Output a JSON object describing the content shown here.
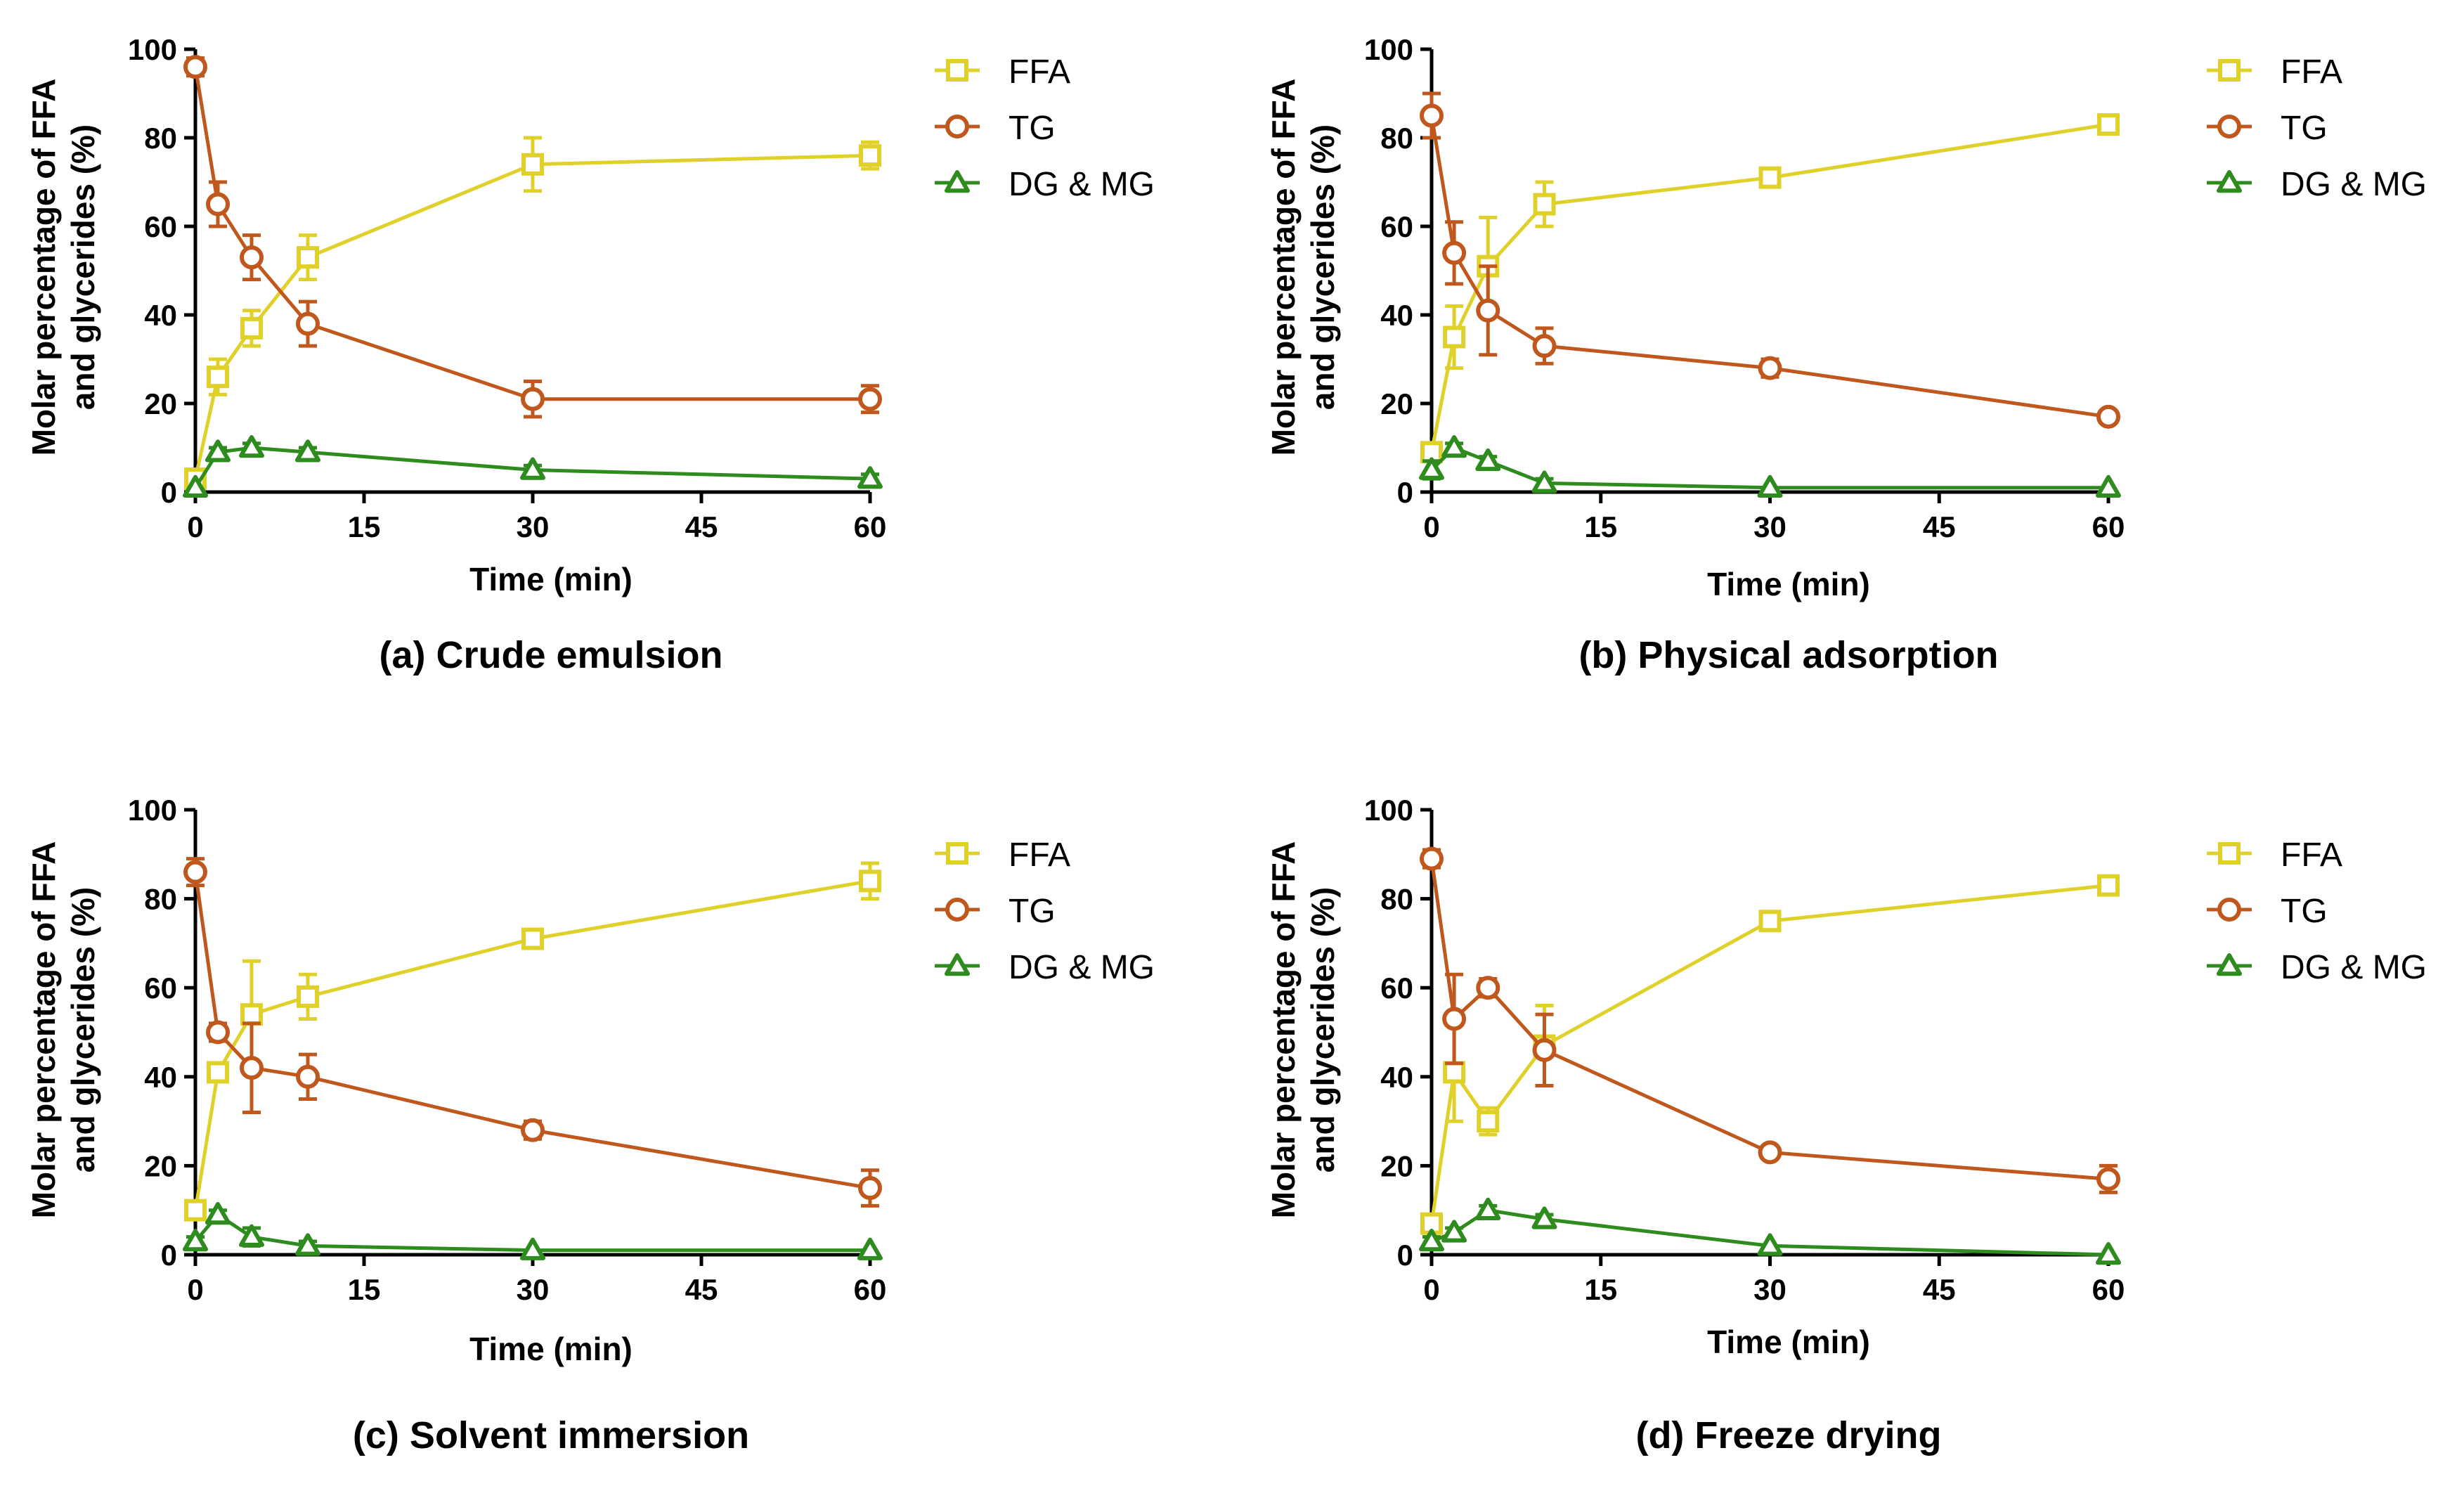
{
  "colors": {
    "FFA": "#e0d12a",
    "TG": "#c0581e",
    "DG & MG": "#2e8b1d"
  },
  "chart_data": [
    {
      "type": "line",
      "caption": "(a) Crude emulsion",
      "xlabel": "Time (min)",
      "ylabel_line1": "Molar percentage of FFA",
      "ylabel_line2": "and glycerides (%)",
      "xlim": [
        0,
        60
      ],
      "ylim": [
        0,
        100
      ],
      "xticks": [
        "0",
        "15",
        "30",
        "45",
        "60"
      ],
      "yticks": [
        "0",
        "20",
        "40",
        "60",
        "80",
        "100"
      ],
      "x": [
        0,
        2,
        5,
        10,
        30,
        60
      ],
      "series": [
        {
          "name": "FFA",
          "marker": "square",
          "values": [
            3,
            26,
            37,
            53,
            74,
            76
          ],
          "errors": [
            2,
            4,
            4,
            5,
            6,
            3
          ]
        },
        {
          "name": "TG",
          "marker": "circle",
          "values": [
            96,
            65,
            53,
            38,
            21,
            21
          ],
          "errors": [
            2,
            5,
            5,
            5,
            4,
            3
          ]
        },
        {
          "name": "DG & MG",
          "marker": "triangle",
          "values": [
            1,
            9,
            10,
            9,
            5,
            3
          ],
          "errors": [
            0,
            1,
            1,
            1,
            1,
            1
          ]
        }
      ]
    },
    {
      "type": "line",
      "caption": "(b) Physical adsorption",
      "xlabel": "Time (min)",
      "ylabel_line1": "Molar percentage of FFA",
      "ylabel_line2": "and glycerides (%)",
      "xlim": [
        0,
        60
      ],
      "ylim": [
        0,
        100
      ],
      "xticks": [
        "0",
        "15",
        "30",
        "45",
        "60"
      ],
      "yticks": [
        "0",
        "20",
        "40",
        "60",
        "80",
        "100"
      ],
      "x": [
        0,
        2,
        5,
        10,
        30,
        60
      ],
      "series": [
        {
          "name": "FFA",
          "marker": "square",
          "values": [
            9,
            35,
            51,
            65,
            71,
            83
          ],
          "errors": [
            2,
            7,
            11,
            5,
            2,
            2
          ]
        },
        {
          "name": "TG",
          "marker": "circle",
          "values": [
            85,
            54,
            41,
            33,
            28,
            17
          ],
          "errors": [
            5,
            7,
            10,
            4,
            2,
            1
          ]
        },
        {
          "name": "DG & MG",
          "marker": "triangle",
          "values": [
            5,
            10,
            7,
            2,
            1,
            1
          ],
          "errors": [
            2,
            1,
            1,
            1,
            0,
            0
          ]
        }
      ]
    },
    {
      "type": "line",
      "caption": "(c) Solvent immersion",
      "xlabel": "Time (min)",
      "ylabel_line1": "Molar percentage of FFA",
      "ylabel_line2": "and glycerides (%)",
      "xlim": [
        0,
        60
      ],
      "ylim": [
        0,
        100
      ],
      "xticks": [
        "0",
        "15",
        "30",
        "45",
        "60"
      ],
      "yticks": [
        "0",
        "20",
        "40",
        "60",
        "80",
        "100"
      ],
      "x": [
        0,
        2,
        5,
        10,
        30,
        60
      ],
      "series": [
        {
          "name": "FFA",
          "marker": "square",
          "values": [
            10,
            41,
            54,
            58,
            71,
            84
          ],
          "errors": [
            2,
            2,
            12,
            5,
            2,
            4
          ]
        },
        {
          "name": "TG",
          "marker": "circle",
          "values": [
            86,
            50,
            42,
            40,
            28,
            15
          ],
          "errors": [
            3,
            2,
            10,
            5,
            2,
            4
          ]
        },
        {
          "name": "DG & MG",
          "marker": "triangle",
          "values": [
            3,
            9,
            4,
            2,
            1,
            1
          ],
          "errors": [
            1,
            1,
            2,
            1,
            0,
            0
          ]
        }
      ]
    },
    {
      "type": "line",
      "caption": "(d) Freeze drying",
      "xlabel": "Time (min)",
      "ylabel_line1": "Molar percentage of FFA",
      "ylabel_line2": "and glycerides (%)",
      "xlim": [
        0,
        60
      ],
      "ylim": [
        0,
        100
      ],
      "xticks": [
        "0",
        "15",
        "30",
        "45",
        "60"
      ],
      "yticks": [
        "0",
        "20",
        "40",
        "60",
        "80",
        "100"
      ],
      "x": [
        0,
        2,
        5,
        10,
        30,
        60
      ],
      "series": [
        {
          "name": "FFA",
          "marker": "square",
          "values": [
            7,
            41,
            30,
            47,
            75,
            83
          ],
          "errors": [
            2,
            11,
            3,
            9,
            2,
            2
          ]
        },
        {
          "name": "TG",
          "marker": "circle",
          "values": [
            89,
            53,
            60,
            46,
            23,
            17
          ],
          "errors": [
            2,
            10,
            2,
            8,
            1,
            3
          ]
        },
        {
          "name": "DG & MG",
          "marker": "triangle",
          "values": [
            3,
            5,
            10,
            8,
            2,
            0
          ],
          "errors": [
            1,
            1,
            1,
            1,
            0,
            0
          ]
        }
      ]
    }
  ]
}
